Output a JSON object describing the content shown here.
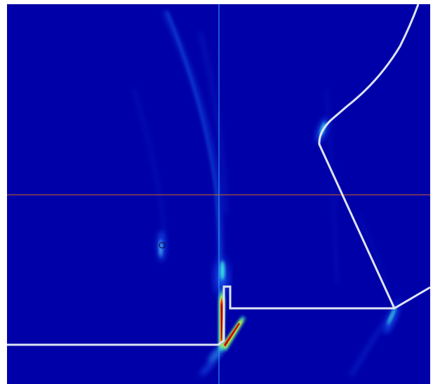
{
  "viewer": {
    "colors": {
      "background": "#0000a8",
      "page": "#ffffff",
      "geometry_outline": "#dde4f2",
      "vertical_cursor": "#33aaff",
      "horizontal_cursor": "#d2691e",
      "colormap": [
        "#0000a8",
        "#0040ff",
        "#00c0ff",
        "#40ffc0",
        "#ffff00",
        "#ff4000",
        "#9b0000"
      ]
    },
    "cursor_lines": [
      "vertical",
      "horizontal"
    ],
    "probe_marker": "circle-marker",
    "geometry": "boundary-outline",
    "colorscale": "jet"
  }
}
